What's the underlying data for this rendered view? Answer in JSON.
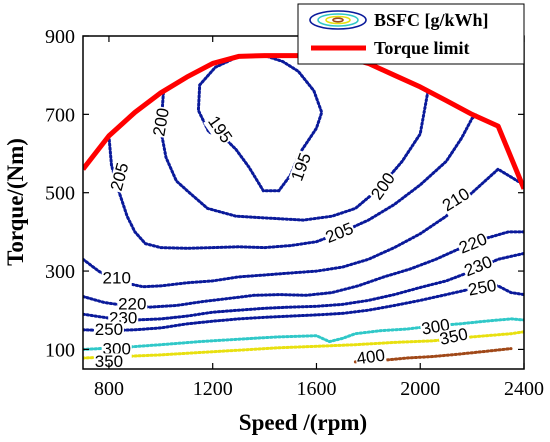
{
  "chart_data": {
    "type": "contour",
    "x_label": "Speed /(rpm)",
    "y_label": "Torque/(Nm)",
    "xlim": [
      700,
      2400
    ],
    "ylim": [
      50,
      900
    ],
    "x_ticks": [
      800,
      1200,
      1600,
      2000,
      2400
    ],
    "y_ticks": [
      100,
      300,
      500,
      700,
      900
    ],
    "grid": false,
    "legend_position": "top-right",
    "legend": [
      {
        "label": "BSFC [g/kWh]",
        "kind": "contour-symbol"
      },
      {
        "label": "Torque limit",
        "kind": "line",
        "color": "#ff0000"
      }
    ],
    "torque_limit": {
      "color": "#ff0000",
      "x": [
        700,
        800,
        900,
        1000,
        1100,
        1200,
        1300,
        1400,
        1500,
        1600,
        1700,
        1800,
        1900,
        2000,
        2100,
        2200,
        2300,
        2400
      ],
      "y": [
        560,
        645,
        705,
        755,
        795,
        830,
        848,
        850,
        850,
        850,
        848,
        830,
        800,
        770,
        735,
        700,
        670,
        510
      ]
    },
    "contours": [
      {
        "level": 195,
        "label": "195",
        "color": "#0a1a9a",
        "x": [
          1300,
          1210,
          1150,
          1145,
          1185,
          1245,
          1290,
          1340,
          1395,
          1455,
          1500,
          1535,
          1575,
          1600,
          1620,
          1590,
          1530,
          1470,
          1410,
          1350,
          1300
        ],
        "y": [
          848,
          820,
          775,
          710,
          655,
          640,
          610,
          565,
          505,
          505,
          545,
          600,
          640,
          665,
          705,
          760,
          810,
          835,
          848,
          850,
          848
        ]
      },
      {
        "level": 200,
        "label": "200",
        "color": "#0a1a9a",
        "x": [
          1010,
          1000,
          1020,
          1060,
          1110,
          1180,
          1290,
          1420,
          1550,
          1660,
          1750,
          1840,
          1930,
          2000,
          2030
        ],
        "y": [
          755,
          660,
          590,
          530,
          500,
          460,
          440,
          435,
          430,
          440,
          460,
          510,
          580,
          650,
          760
        ]
      },
      {
        "level": 205,
        "label": "205",
        "color": "#0a1a9a",
        "x": [
          800,
          810,
          840,
          870,
          900,
          940,
          1000,
          1100,
          1200,
          1300,
          1400,
          1500,
          1600,
          1700,
          1800,
          1900,
          2000,
          2100,
          2160,
          2200,
          2220
        ],
        "y": [
          645,
          570,
          500,
          440,
          400,
          370,
          360,
          358,
          360,
          362,
          360,
          365,
          375,
          400,
          430,
          470,
          520,
          580,
          640,
          690,
          700
        ]
      },
      {
        "level": 210,
        "label": "210",
        "color": "#0a1a9a",
        "x": [
          700,
          720,
          760,
          800,
          860,
          930,
          1000,
          1100,
          1200,
          1300,
          1400,
          1500,
          1600,
          1700,
          1800,
          1900,
          2000,
          2100,
          2200,
          2300,
          2400
        ],
        "y": [
          330,
          320,
          300,
          285,
          270,
          260,
          262,
          270,
          275,
          285,
          290,
          295,
          300,
          310,
          330,
          360,
          395,
          440,
          500,
          560,
          520
        ]
      },
      {
        "level": 220,
        "label": "220",
        "color": "#0a1a9a",
        "x": [
          700,
          780,
          860,
          960,
          1060,
          1160,
          1260,
          1360,
          1460,
          1560,
          1660,
          1760,
          1860,
          1960,
          2060,
          2160,
          2260,
          2340,
          2400
        ],
        "y": [
          235,
          220,
          212,
          208,
          212,
          222,
          230,
          238,
          240,
          238,
          245,
          262,
          285,
          305,
          330,
          360,
          385,
          400,
          400
        ]
      },
      {
        "level": 230,
        "label": "230",
        "color": "#0a1a9a",
        "x": [
          700,
          800,
          900,
          1000,
          1100,
          1200,
          1300,
          1400,
          1500,
          1600,
          1700,
          1800,
          1900,
          2000,
          2100,
          2200,
          2300,
          2400
        ],
        "y": [
          190,
          180,
          175,
          178,
          185,
          195,
          200,
          205,
          208,
          210,
          215,
          225,
          240,
          258,
          275,
          300,
          330,
          345
        ]
      },
      {
        "level": 250,
        "label": "250",
        "color": "#0a1a9a",
        "x": [
          700,
          800,
          900,
          1000,
          1100,
          1200,
          1300,
          1400,
          1500,
          1600,
          1700,
          1800,
          1900,
          2000,
          2100,
          2200,
          2300,
          2350,
          2400
        ],
        "y": [
          150,
          148,
          150,
          155,
          165,
          172,
          178,
          182,
          185,
          188,
          192,
          200,
          212,
          225,
          240,
          255,
          262,
          245,
          240
        ]
      },
      {
        "level": 300,
        "label": "300",
        "color": "#30c8c8",
        "x": [
          700,
          850,
          1000,
          1150,
          1300,
          1450,
          1600,
          1650,
          1700,
          1750,
          1850,
          1950,
          2050,
          2150,
          2250,
          2350,
          2400
        ],
        "y": [
          100,
          105,
          112,
          120,
          126,
          132,
          135,
          120,
          128,
          140,
          148,
          152,
          160,
          165,
          172,
          178,
          175
        ]
      },
      {
        "level": 350,
        "label": "350",
        "color": "#e8e010",
        "x": [
          700,
          850,
          1000,
          1150,
          1300,
          1450,
          1600,
          1750,
          1900,
          2050,
          2200,
          2350,
          2400
        ],
        "y": [
          78,
          82,
          86,
          92,
          98,
          104,
          108,
          112,
          118,
          122,
          132,
          140,
          145
        ]
      },
      {
        "level": 400,
        "label": "400",
        "color": "#a04818",
        "x": [
          1750,
          1850,
          1950,
          2050,
          2150,
          2250,
          2350
        ],
        "y": [
          68,
          72,
          78,
          82,
          88,
          95,
          102
        ]
      }
    ],
    "contour_labels": [
      {
        "text": "195",
        "x": 1225,
        "y": 660,
        "angle": 55
      },
      {
        "text": "195",
        "x": 1545,
        "y": 565,
        "angle": -70
      },
      {
        "text": "200",
        "x": 1005,
        "y": 680,
        "angle": -80
      },
      {
        "text": "200",
        "x": 1860,
        "y": 515,
        "angle": -55
      },
      {
        "text": "205",
        "x": 845,
        "y": 540,
        "angle": -75
      },
      {
        "text": "205",
        "x": 1690,
        "y": 395,
        "angle": -22
      },
      {
        "text": "210",
        "x": 830,
        "y": 280,
        "angle": 0
      },
      {
        "text": "210",
        "x": 2140,
        "y": 480,
        "angle": -32
      },
      {
        "text": "220",
        "x": 890,
        "y": 213,
        "angle": 0
      },
      {
        "text": "220",
        "x": 2205,
        "y": 368,
        "angle": -22
      },
      {
        "text": "230",
        "x": 855,
        "y": 178,
        "angle": 0
      },
      {
        "text": "230",
        "x": 2225,
        "y": 310,
        "angle": -22
      },
      {
        "text": "250",
        "x": 800,
        "y": 148,
        "angle": 0
      },
      {
        "text": "250",
        "x": 2240,
        "y": 255,
        "angle": -10
      },
      {
        "text": "300",
        "x": 830,
        "y": 98,
        "angle": 0
      },
      {
        "text": "300",
        "x": 2060,
        "y": 155,
        "angle": -10
      },
      {
        "text": "350",
        "x": 800,
        "y": 67,
        "angle": 0
      },
      {
        "text": "350",
        "x": 2130,
        "y": 130,
        "angle": -12
      },
      {
        "text": "400",
        "x": 1810,
        "y": 78,
        "angle": -8
      }
    ]
  }
}
